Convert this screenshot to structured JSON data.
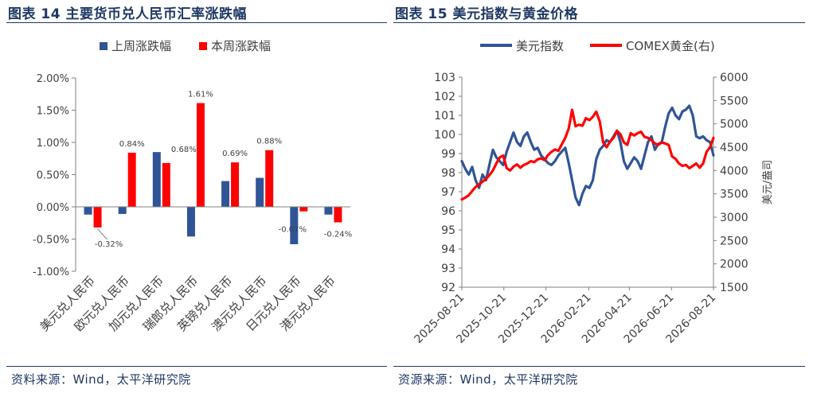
{
  "left_panel": {
    "figure_title": "图表 14 主要货币兑人民币汇率涨跌幅",
    "source": "资料来源：Wind，太平洋研究院"
  },
  "right_panel": {
    "figure_title": "图表 15 美元指数与黄金价格",
    "source": "资源来源：Wind，太平洋研究院"
  },
  "colors": {
    "blue": "#2f5597",
    "red": "#ff0000",
    "title": "#1f3864"
  },
  "chart_data": [
    {
      "type": "bar",
      "categories": [
        "美元兑人民币",
        "欧元兑人民币",
        "加元兑人民币",
        "瑞郎兑人民币",
        "英镑兑人民币",
        "澳元兑人民币",
        "日元兑人民币",
        "港元兑人民币"
      ],
      "series": [
        {
          "name": "上周涨跌幅",
          "color": "#2f5597",
          "values": [
            -0.12,
            -0.11,
            0.85,
            -0.46,
            0.4,
            0.45,
            -0.58,
            -0.12
          ]
        },
        {
          "name": "本周涨跌幅",
          "color": "#ff0000",
          "values": [
            -0.32,
            0.84,
            0.68,
            1.61,
            0.69,
            0.88,
            -0.07,
            -0.24
          ],
          "data_labels": [
            "-0.32%",
            "0.84%",
            "0.68%",
            "1.61%",
            "0.69%",
            "0.88%",
            "-0.07%",
            "-0.24%"
          ]
        }
      ],
      "ylim": [
        -1.0,
        2.0
      ],
      "yticks": [
        -1.0,
        -0.5,
        0.0,
        0.5,
        1.0,
        1.5,
        2.0
      ],
      "ytick_labels": [
        "-1.00%",
        "-0.50%",
        "0.00%",
        "0.50%",
        "1.00%",
        "1.50%",
        "2.00%"
      ],
      "legend_position": "top",
      "grid": false
    },
    {
      "type": "line",
      "x_range": [
        "2025-08-21",
        "2026-08-21"
      ],
      "xtick_labels": [
        "2025-08-21",
        "2025-10-21",
        "2025-12-21",
        "2026-02-21",
        "2026-04-21",
        "2026-06-21",
        "2026-08-21"
      ],
      "series": [
        {
          "name": "美元指数",
          "axis": "left",
          "color": "#2f5597",
          "x": [
            "2025-08-21",
            "2025-08-26",
            "2025-08-31",
            "2025-09-05",
            "2025-09-10",
            "2025-09-15",
            "2025-09-20",
            "2025-09-25",
            "2025-09-30",
            "2025-10-05",
            "2025-10-10",
            "2025-10-15",
            "2025-10-20",
            "2025-10-25",
            "2025-10-30",
            "2025-11-04",
            "2025-11-09",
            "2025-11-14",
            "2025-11-19",
            "2025-11-24",
            "2025-11-29",
            "2025-12-04",
            "2025-12-09",
            "2025-12-14",
            "2025-12-19",
            "2025-12-24",
            "2025-12-29",
            "2026-01-03",
            "2026-01-08",
            "2026-01-13",
            "2026-01-18",
            "2026-01-23",
            "2026-01-28",
            "2026-02-02",
            "2026-02-07",
            "2026-02-12",
            "2026-02-17",
            "2026-02-22",
            "2026-02-27",
            "2026-03-04",
            "2026-03-09",
            "2026-03-14",
            "2026-03-19",
            "2026-03-24",
            "2026-03-29",
            "2026-04-03",
            "2026-04-08",
            "2026-04-13",
            "2026-04-18",
            "2026-04-23",
            "2026-04-28",
            "2026-05-03",
            "2026-05-08",
            "2026-05-13",
            "2026-05-18",
            "2026-05-23",
            "2026-05-28",
            "2026-06-02",
            "2026-06-07",
            "2026-06-12",
            "2026-06-17",
            "2026-06-22",
            "2026-06-27",
            "2026-07-02",
            "2026-07-07",
            "2026-07-12",
            "2026-07-17",
            "2026-07-22",
            "2026-07-27",
            "2026-08-01",
            "2026-08-06",
            "2026-08-11",
            "2026-08-16",
            "2026-08-21"
          ],
          "values": [
            98.6,
            98.2,
            97.9,
            98.3,
            97.6,
            97.2,
            97.9,
            97.6,
            98.4,
            99.2,
            98.8,
            98.6,
            98.4,
            99.1,
            99.6,
            100.1,
            99.6,
            99.4,
            99.9,
            100.1,
            99.6,
            99.2,
            99.3,
            98.9,
            98.7,
            98.5,
            98.4,
            98.6,
            98.9,
            99.1,
            99.3,
            98.5,
            97.6,
            96.7,
            96.3,
            96.9,
            97.3,
            97.2,
            97.6,
            98.7,
            99.2,
            99.4,
            99.7,
            99.6,
            99.9,
            100.2,
            99.6,
            98.6,
            98.2,
            98.5,
            98.8,
            98.6,
            98.2,
            98.9,
            99.6,
            99.9,
            99.2,
            99.5,
            99.6,
            100.4,
            101.1,
            101.4,
            101.0,
            100.8,
            101.2,
            101.3,
            101.5,
            101.0,
            99.9,
            99.8,
            99.9,
            99.7,
            99.6,
            98.9
          ]
        },
        {
          "name": "COMEX黄金(右)",
          "axis": "right",
          "color": "#ff0000",
          "x": [
            "2025-08-21",
            "2025-08-26",
            "2025-08-31",
            "2025-09-05",
            "2025-09-10",
            "2025-09-15",
            "2025-09-20",
            "2025-09-25",
            "2025-09-30",
            "2025-10-05",
            "2025-10-10",
            "2025-10-15",
            "2025-10-20",
            "2025-10-25",
            "2025-10-30",
            "2025-11-04",
            "2025-11-09",
            "2025-11-14",
            "2025-11-19",
            "2025-11-24",
            "2025-11-29",
            "2025-12-04",
            "2025-12-09",
            "2025-12-14",
            "2025-12-19",
            "2025-12-24",
            "2025-12-29",
            "2026-01-03",
            "2026-01-08",
            "2026-01-13",
            "2026-01-18",
            "2026-01-23",
            "2026-01-28",
            "2026-02-02",
            "2026-02-07",
            "2026-02-12",
            "2026-02-17",
            "2026-02-22",
            "2026-02-27",
            "2026-03-04",
            "2026-03-09",
            "2026-03-14",
            "2026-03-19",
            "2026-03-24",
            "2026-03-29",
            "2026-04-03",
            "2026-04-08",
            "2026-04-13",
            "2026-04-18",
            "2026-04-23",
            "2026-04-28",
            "2026-05-03",
            "2026-05-08",
            "2026-05-13",
            "2026-05-18",
            "2026-05-23",
            "2026-05-28",
            "2026-06-02",
            "2026-06-07",
            "2026-06-12",
            "2026-06-17",
            "2026-06-22",
            "2026-06-27",
            "2026-07-02",
            "2026-07-07",
            "2026-07-12",
            "2026-07-17",
            "2026-07-22",
            "2026-07-27",
            "2026-08-01",
            "2026-08-06",
            "2026-08-11",
            "2026-08-16",
            "2026-08-21"
          ],
          "values": [
            3380,
            3420,
            3470,
            3560,
            3650,
            3700,
            3760,
            3820,
            3900,
            4000,
            4150,
            4280,
            4320,
            4050,
            4000,
            4080,
            4130,
            4060,
            4120,
            4150,
            4200,
            4180,
            4240,
            4260,
            4220,
            4330,
            4400,
            4450,
            4420,
            4560,
            4700,
            4900,
            5300,
            4950,
            4980,
            4960,
            5120,
            5080,
            5150,
            5260,
            5050,
            4600,
            4500,
            4620,
            4700,
            4850,
            4780,
            4600,
            4550,
            4800,
            4750,
            4800,
            4830,
            4720,
            4700,
            4650,
            4580,
            4550,
            4600,
            4580,
            4550,
            4300,
            4250,
            4150,
            4100,
            4120,
            4050,
            4100,
            4150,
            4060,
            4150,
            4400,
            4500,
            4700
          ]
        }
      ],
      "yleft": {
        "ylim": [
          92,
          103
        ],
        "ticks": [
          92,
          93,
          94,
          95,
          96,
          97,
          98,
          99,
          100,
          101,
          102,
          103
        ]
      },
      "yright": {
        "ylim": [
          1500,
          6000
        ],
        "ticks": [
          1500,
          2000,
          2500,
          3000,
          3500,
          4000,
          4500,
          5000,
          5500,
          6000
        ],
        "label": "美元/盎司"
      },
      "legend_position": "top",
      "grid": false
    }
  ]
}
